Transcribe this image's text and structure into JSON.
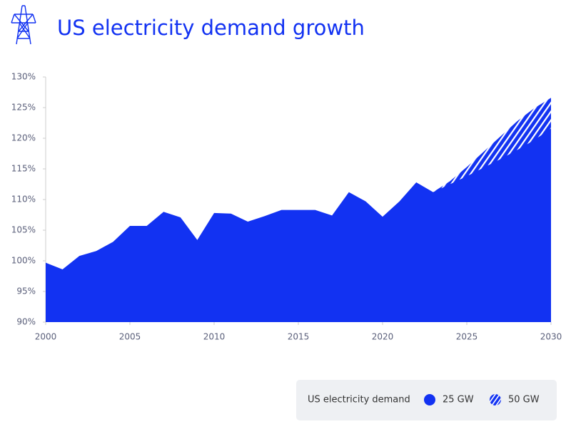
{
  "chart_data": {
    "type": "area",
    "title": "US electricity demand growth",
    "legend_title": "US electricity demand",
    "x": [
      2000,
      2001,
      2002,
      2003,
      2004,
      2005,
      2006,
      2007,
      2008,
      2009,
      2010,
      2011,
      2012,
      2013,
      2014,
      2015,
      2016,
      2017,
      2018,
      2019,
      2020,
      2021,
      2022,
      2023,
      2024,
      2025,
      2026,
      2027,
      2028,
      2029,
      2030
    ],
    "series": [
      {
        "name": "25 GW",
        "color": "#1232f2",
        "fill": "solid",
        "values": [
          99.7,
          98.6,
          100.8,
          101.6,
          103.1,
          105.7,
          105.7,
          108.0,
          107.1,
          103.4,
          107.8,
          107.7,
          106.4,
          107.3,
          108.3,
          108.3,
          108.3,
          107.4,
          111.2,
          109.7,
          107.2,
          109.7,
          112.8,
          111.2,
          112.5,
          113.8,
          115.2,
          116.6,
          118.1,
          119.7,
          121.6
        ]
      },
      {
        "name": "50 GW",
        "color": "#1232f2",
        "fill": "hatched",
        "values": [
          null,
          null,
          null,
          null,
          null,
          null,
          null,
          null,
          null,
          null,
          null,
          null,
          null,
          null,
          null,
          null,
          null,
          null,
          null,
          null,
          null,
          null,
          null,
          111.2,
          113.0,
          115.3,
          117.8,
          120.3,
          122.8,
          124.9,
          126.6
        ]
      }
    ],
    "xlim": [
      2000,
      2030
    ],
    "xticks": [
      2000,
      2005,
      2010,
      2015,
      2020,
      2025,
      2030
    ],
    "ylim": [
      90,
      130
    ],
    "yticks": [
      {
        "value": 90,
        "label": "90%"
      },
      {
        "value": 95,
        "label": "95%"
      },
      {
        "value": 100,
        "label": "100%"
      },
      {
        "value": 105,
        "label": "105%"
      },
      {
        "value": 110,
        "label": "110%"
      },
      {
        "value": 115,
        "label": "115%"
      },
      {
        "value": 120,
        "label": "120%"
      },
      {
        "value": 125,
        "label": "125%"
      },
      {
        "value": 130,
        "label": "130%"
      }
    ],
    "grid": false
  }
}
